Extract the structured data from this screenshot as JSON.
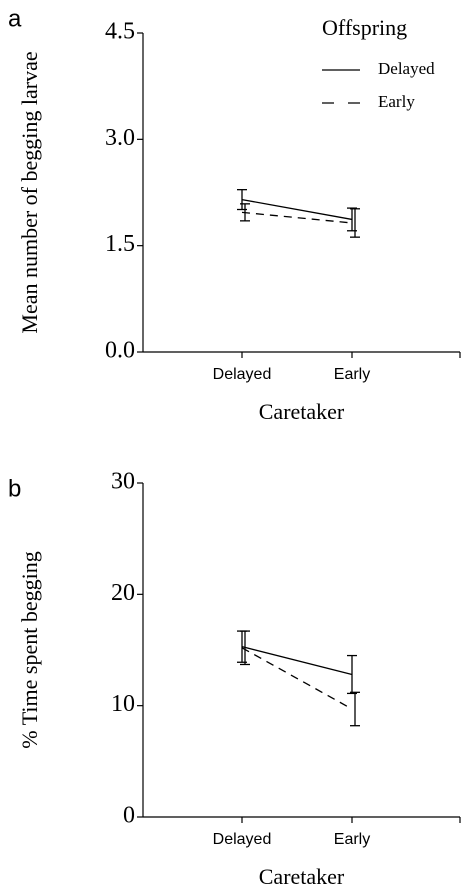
{
  "chart_data": [
    {
      "type": "line",
      "panel_label": "a",
      "ylabel": "Mean number of begging larvae",
      "xlabel": "Caretaker",
      "categories": [
        "Delayed",
        "Early"
      ],
      "ylim": [
        0,
        4.5
      ],
      "yticks": [
        {
          "value": 0,
          "label": "0.0"
        },
        1.5,
        {
          "value": 3,
          "label": "3.0"
        },
        4.5
      ],
      "legend_title": "Offspring",
      "legend": "upper right",
      "series": [
        {
          "name": "Delayed",
          "color": "#000000",
          "line_style": "solid",
          "values": [
            2.15,
            1.87
          ],
          "errors": [
            0.14,
            0.16
          ]
        },
        {
          "name": "Early",
          "color": "#000000",
          "line_style": "dashed",
          "values": [
            1.97,
            1.82
          ],
          "errors": [
            0.12,
            0.2
          ]
        }
      ]
    },
    {
      "type": "line",
      "panel_label": "b",
      "ylabel": "% Time spent begging",
      "xlabel": "Caretaker",
      "categories": [
        "Delayed",
        "Early"
      ],
      "ylim": [
        0,
        30
      ],
      "yticks": [
        0,
        10,
        20,
        30
      ],
      "series": [
        {
          "color": "#000000",
          "line_style": "solid",
          "values": [
            15.3,
            12.8
          ],
          "errors": [
            1.4,
            1.7
          ]
        },
        {
          "color": "#000000",
          "line_style": "dashed",
          "values": [
            15.2,
            9.7
          ],
          "errors": [
            1.5,
            1.5
          ]
        }
      ]
    }
  ]
}
